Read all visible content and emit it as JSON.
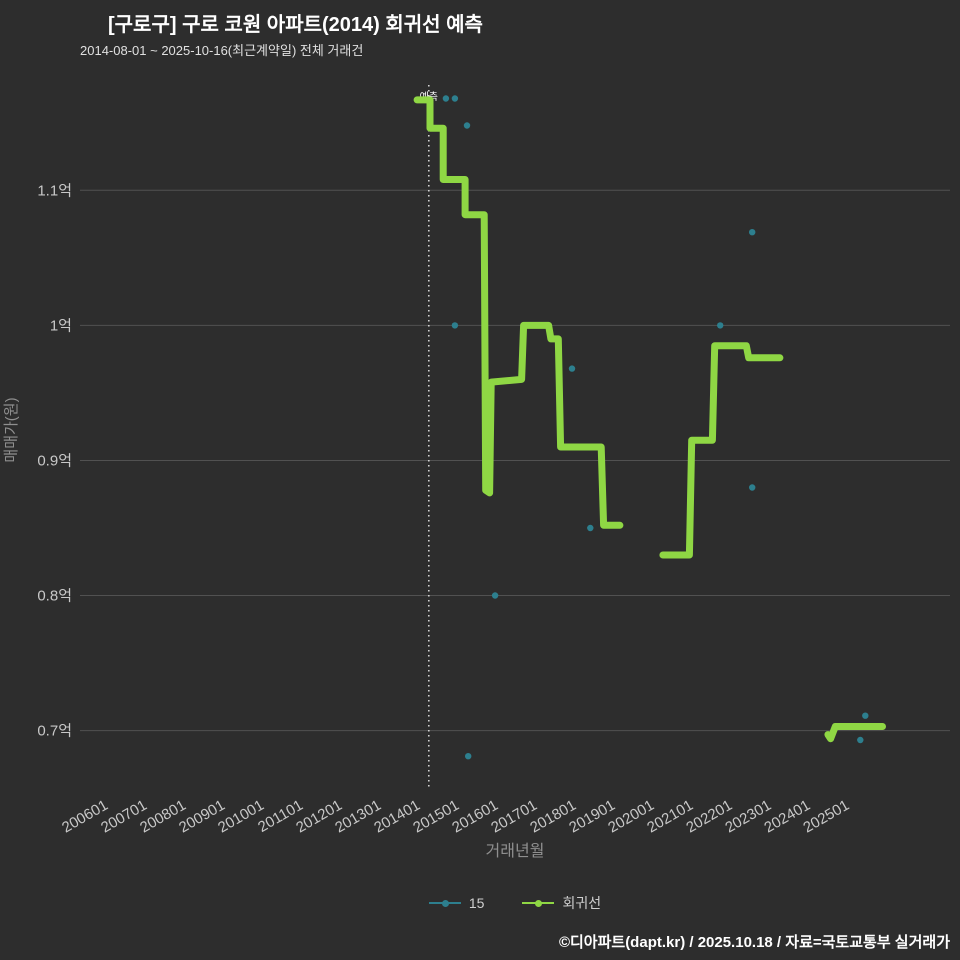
{
  "header": {
    "title": "[구로구] 구로 코원 아파트(2014) 회귀선 예측",
    "subtitle": "2014-08-01 ~ 2025-10-16(최근계약일) 전체 거래건"
  },
  "footer": {
    "text": "©디아파트(dapt.kr) / 2025.10.18 / 자료=국토교통부 실거래가"
  },
  "legend": {
    "items": [
      {
        "label": "15",
        "color": "#2d7f8e"
      },
      {
        "label": "회귀선",
        "color": "#8fd744"
      }
    ]
  },
  "colors": {
    "background": "#2d2d2d",
    "grid": "#515151",
    "tick_label": "#c8c8c8",
    "axis_title": "#8f8f8f",
    "vline": "#dddddd",
    "scatter": "#2d7f8e",
    "regression": "#8fd744"
  },
  "chart_data": {
    "type": "line",
    "title": "[구로구] 구로 코원 아파트(2014) 회귀선 예측",
    "subtitle": "2014-08-01 ~ 2025-10-16(최근계약일) 전체 거래건",
    "xlabel": "거래년월",
    "ylabel": "매매가(원)",
    "grid": "horizontal",
    "legend_position": "bottom-center",
    "xlim": [
      2005.36,
      2027.66
    ],
    "ylim": [
      0.656,
      1.178
    ],
    "x_ticks": [
      {
        "label": "200601",
        "year": 2006
      },
      {
        "label": "200701",
        "year": 2007
      },
      {
        "label": "200801",
        "year": 2008
      },
      {
        "label": "200901",
        "year": 2009
      },
      {
        "label": "201001",
        "year": 2010
      },
      {
        "label": "201101",
        "year": 2011
      },
      {
        "label": "201201",
        "year": 2012
      },
      {
        "label": "201301",
        "year": 2013
      },
      {
        "label": "201401",
        "year": 2014
      },
      {
        "label": "201501",
        "year": 2015
      },
      {
        "label": "201601",
        "year": 2016
      },
      {
        "label": "201701",
        "year": 2017
      },
      {
        "label": "201801",
        "year": 2018
      },
      {
        "label": "201901",
        "year": 2019
      },
      {
        "label": "202001",
        "year": 2020
      },
      {
        "label": "202101",
        "year": 2021
      },
      {
        "label": "202201",
        "year": 2022
      },
      {
        "label": "202301",
        "year": 2023
      },
      {
        "label": "202401",
        "year": 2024
      },
      {
        "label": "202501",
        "year": 2025
      }
    ],
    "y_ticks": [
      {
        "label": "0.7억",
        "value": 0.7
      },
      {
        "label": "0.8억",
        "value": 0.8
      },
      {
        "label": "0.9억",
        "value": 0.9
      },
      {
        "label": "1억",
        "value": 1.0
      },
      {
        "label": "1.1억",
        "value": 1.1
      }
    ],
    "vline": {
      "x": 2014.3,
      "style": "dotted",
      "label": "예측"
    },
    "series": [
      {
        "name": "15",
        "type": "scatter",
        "color": "#2d7f8e",
        "points": [
          [
            2014.74,
            1.168
          ],
          [
            2014.97,
            1.168
          ],
          [
            2015.28,
            1.148
          ],
          [
            2014.97,
            1.0
          ],
          [
            2015.31,
            0.681
          ],
          [
            2016.0,
            0.8
          ],
          [
            2017.97,
            0.968
          ],
          [
            2018.44,
            0.85
          ],
          [
            2021.77,
            1.0
          ],
          [
            2022.59,
            1.069
          ],
          [
            2022.59,
            0.88
          ],
          [
            2025.36,
            0.693
          ],
          [
            2025.49,
            0.711
          ]
        ]
      },
      {
        "name": "회귀선",
        "type": "step-line",
        "color": "#8fd744",
        "width": 7,
        "segments": [
          [
            [
              2014.0,
              1.167
            ],
            [
              2014.33,
              1.167
            ],
            [
              2014.33,
              1.146
            ],
            [
              2014.67,
              1.146
            ],
            [
              2014.67,
              1.108
            ],
            [
              2015.23,
              1.108
            ],
            [
              2015.23,
              1.082
            ],
            [
              2015.72,
              1.082
            ],
            [
              2015.76,
              0.878
            ],
            [
              2015.86,
              0.876
            ],
            [
              2015.9,
              0.958
            ],
            [
              2016.68,
              0.96
            ],
            [
              2016.73,
              1.0
            ],
            [
              2017.37,
              1.0
            ],
            [
              2017.43,
              0.99
            ],
            [
              2017.62,
              0.99
            ],
            [
              2017.68,
              0.91
            ],
            [
              2018.72,
              0.91
            ],
            [
              2018.78,
              0.852
            ],
            [
              2019.2,
              0.852
            ]
          ],
          [
            [
              2020.3,
              0.83
            ],
            [
              2020.98,
              0.83
            ],
            [
              2021.04,
              0.915
            ],
            [
              2021.57,
              0.915
            ],
            [
              2021.63,
              0.985
            ],
            [
              2022.44,
              0.985
            ],
            [
              2022.5,
              0.976
            ],
            [
              2023.3,
              0.976
            ]
          ],
          [
            [
              2024.53,
              0.697
            ],
            [
              2024.6,
              0.694
            ],
            [
              2024.72,
              0.703
            ],
            [
              2025.93,
              0.703
            ]
          ]
        ]
      }
    ]
  }
}
